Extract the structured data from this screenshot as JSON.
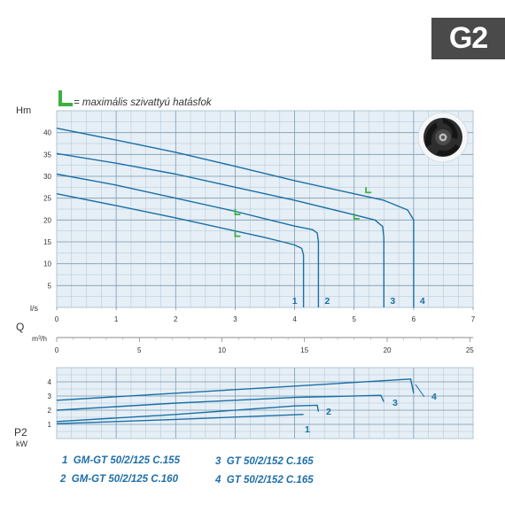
{
  "badge": "G2",
  "note": "= maximális szivattyú hatásfok",
  "legend": [
    {
      "num": "1",
      "model": "GM-GT 50/2/125 C.155"
    },
    {
      "num": "2",
      "model": "GM-GT 50/2/125 C.160"
    },
    {
      "num": "3",
      "model": "GT 50/2/152 C.165"
    },
    {
      "num": "4",
      "model": "GT 50/2/152 C.165"
    }
  ],
  "colors": {
    "curve": "#1a6fa6",
    "grid": "#9fb9cd",
    "bg": "#e6eff6",
    "eff": "#3cb043",
    "badge": "#4a4a4a"
  },
  "chart_data": [
    {
      "type": "line",
      "ylabel": "Hm",
      "xlabel": "l/s",
      "x_secondary_label": "m³/h",
      "x_ticks": [
        0,
        1,
        2,
        3,
        4,
        5,
        6,
        7
      ],
      "x_secondary_ticks": [
        0,
        5,
        10,
        15,
        20,
        25
      ],
      "y_ticks": [
        5,
        10,
        15,
        20,
        25,
        30,
        35,
        40
      ],
      "xlim": [
        0,
        7
      ],
      "ylim": [
        0,
        45
      ],
      "grid": true,
      "series": [
        {
          "name": "1",
          "points": [
            [
              0,
              26
            ],
            [
              1,
              23.3
            ],
            [
              2,
              20.5
            ],
            [
              3,
              17.5
            ],
            [
              3.5,
              16
            ],
            [
              3.8,
              15
            ],
            [
              4.0,
              14.3
            ],
            [
              4.12,
              13.5
            ],
            [
              4.15,
              12
            ],
            [
              4.15,
              0
            ]
          ],
          "efficiency_marker": [
            3,
            16.5
          ]
        },
        {
          "name": "2",
          "points": [
            [
              0,
              30.5
            ],
            [
              1,
              28
            ],
            [
              2,
              25
            ],
            [
              3,
              22
            ],
            [
              3.5,
              20.3
            ],
            [
              4.0,
              18.6
            ],
            [
              4.3,
              17.8
            ],
            [
              4.38,
              17
            ],
            [
              4.4,
              15
            ],
            [
              4.4,
              0
            ]
          ],
          "efficiency_marker": [
            3,
            21.5
          ]
        },
        {
          "name": "3",
          "points": [
            [
              0,
              35.2
            ],
            [
              1,
              33
            ],
            [
              2,
              30.5
            ],
            [
              3,
              27.5
            ],
            [
              4,
              24.5
            ],
            [
              5,
              21.2
            ],
            [
              5.35,
              20
            ],
            [
              5.48,
              18.5
            ],
            [
              5.5,
              16
            ],
            [
              5.5,
              0
            ]
          ],
          "efficiency_marker": [
            5.0,
            20.5
          ]
        },
        {
          "name": "4",
          "points": [
            [
              0,
              41
            ],
            [
              1,
              38.3
            ],
            [
              2,
              35.5
            ],
            [
              3,
              32.3
            ],
            [
              4,
              29
            ],
            [
              5,
              26
            ],
            [
              5.5,
              24.5
            ],
            [
              5.9,
              22.3
            ],
            [
              6.0,
              20
            ],
            [
              6.0,
              0
            ]
          ],
          "efficiency_marker": [
            5.2,
            26.5
          ]
        }
      ]
    },
    {
      "type": "line",
      "ylabel": "P2",
      "yunit": "kW",
      "y_ticks": [
        1,
        2,
        3,
        4
      ],
      "ylim": [
        0,
        5
      ],
      "xlim": [
        0,
        7
      ],
      "grid": true,
      "series": [
        {
          "name": "1",
          "points": [
            [
              0,
              1.05
            ],
            [
              2,
              1.35
            ],
            [
              4.12,
              1.7
            ],
            [
              4.15,
              1.7
            ]
          ]
        },
        {
          "name": "2",
          "points": [
            [
              0,
              1.2
            ],
            [
              2,
              1.7
            ],
            [
              4.0,
              2.3
            ],
            [
              4.38,
              2.35
            ],
            [
              4.4,
              1.9
            ]
          ]
        },
        {
          "name": "3",
          "points": [
            [
              0,
              2.0
            ],
            [
              2,
              2.5
            ],
            [
              4,
              2.9
            ],
            [
              5.45,
              3.05
            ],
            [
              5.5,
              2.6
            ]
          ]
        },
        {
          "name": "4",
          "points": [
            [
              0,
              2.7
            ],
            [
              2,
              3.2
            ],
            [
              4,
              3.7
            ],
            [
              5.95,
              4.2
            ],
            [
              6.0,
              3.2
            ]
          ]
        }
      ]
    }
  ]
}
